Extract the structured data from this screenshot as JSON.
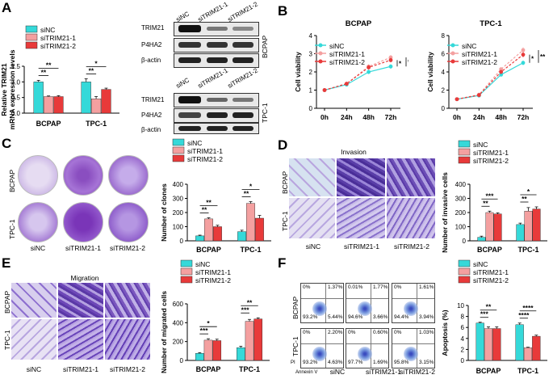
{
  "colors": {
    "siNC": "#35d9d9",
    "si1": "#f4a0a0",
    "si2": "#e83a3a",
    "err": "#111111",
    "purple": "#6a2a9a",
    "lavender": "#c9b6e6",
    "sig": "#000000"
  },
  "legend": [
    "siNC",
    "siTRIM21-1",
    "siTRIM21-2"
  ],
  "panel_labels": [
    "A",
    "B",
    "C",
    "D",
    "E",
    "F"
  ],
  "panelA": {
    "ylabel1": "Relative TRIM21",
    "ylabel2": "mRNA expression levels",
    "blot_lanes": [
      "siNC",
      "siTRIM21-1",
      "siTRIM21-2"
    ],
    "blot_rows": [
      "TRIM21",
      "P4HA2",
      "β-actin"
    ],
    "blot_groups": [
      "BCPAP",
      "TPC-1"
    ]
  },
  "panelB": {
    "titles": [
      "BCPAP",
      "TPC-1"
    ],
    "ylabel": "Cell viability"
  },
  "panelC": {
    "rows": [
      "BCPAP",
      "TPC-1"
    ],
    "cols": [
      "siNC",
      "siTRIM21-1",
      "siTRIM21-2"
    ]
  },
  "panelD": {
    "title": "Invasion",
    "rows": [
      "BCPAP",
      "TPC-1"
    ],
    "cols": [
      "siNC",
      "siTRIM21-1",
      "siTRIM21-2"
    ]
  },
  "panelE": {
    "title": "Migration",
    "rows": [
      "BCPAP",
      "TPC-1"
    ],
    "cols": [
      "siNC",
      "siTRIM21-1",
      "siTRIM21-2"
    ]
  },
  "panelF": {
    "rows": [
      "BCPAP",
      "TPC-1"
    ],
    "cols": [
      "siNC",
      "siTRIM21-1",
      "siTRIM21-2"
    ],
    "xaxis": "Annexin V",
    "yaxis": "PI",
    "quadrants": [
      [
        [
          "0%",
          "1.37%",
          "93.2%",
          "5.44%"
        ],
        [
          "0.01%",
          "1.77%",
          "94.6%",
          "3.66%"
        ],
        [
          "0%",
          "1.61%",
          "94.4%",
          "3.94%"
        ]
      ],
      [
        [
          "0%",
          "2.20%",
          "93.2%",
          "4.63%"
        ],
        [
          "0%",
          "0.60%",
          "97.7%",
          "1.69%"
        ],
        [
          "0%",
          "1.03%",
          "95.8%",
          "3.15%"
        ]
      ]
    ]
  },
  "chart_data": [
    {
      "id": "A",
      "type": "bar",
      "categories": [
        "BCPAP",
        "TPC-1"
      ],
      "ylabel": "Relative TRIM21 mRNA expression levels",
      "series": [
        {
          "name": "siNC",
          "values": [
            1.0,
            1.0
          ],
          "err": [
            0.05,
            0.1
          ]
        },
        {
          "name": "siTRIM21-1",
          "values": [
            0.53,
            0.46
          ],
          "err": [
            0.02,
            0.07
          ]
        },
        {
          "name": "siTRIM21-2",
          "values": [
            0.53,
            0.76
          ],
          "err": [
            0.03,
            0.04
          ]
        }
      ],
      "ylim": [
        0,
        1.5
      ],
      "yticks": [
        "0.0",
        "0.5",
        "1.0",
        "1.5"
      ],
      "sig": [
        {
          "cat": 0,
          "pairs": [
            [
              "**",
              0,
              1
            ],
            [
              "**",
              0,
              2
            ]
          ]
        },
        {
          "cat": 1,
          "pairs": [
            [
              "**",
              0,
              1
            ],
            [
              "*",
              0,
              2
            ]
          ]
        }
      ]
    },
    {
      "id": "B1",
      "type": "line",
      "title": "BCPAP",
      "categories": [
        "0h",
        "24h",
        "48h",
        "72h"
      ],
      "ylabel": "Cell viability",
      "ylim": [
        0,
        4
      ],
      "yticks": [
        "0",
        "1",
        "2",
        "3",
        "4"
      ],
      "series": [
        {
          "name": "siNC",
          "values": [
            1.0,
            1.3,
            2.0,
            2.3
          ],
          "err": [
            0.1,
            0.1,
            0.12,
            0.12
          ]
        },
        {
          "name": "siTRIM21-1",
          "values": [
            1.0,
            1.35,
            2.3,
            2.8
          ],
          "err": [
            0.1,
            0.1,
            0.12,
            0.12
          ]
        },
        {
          "name": "siTRIM21-2",
          "values": [
            1.0,
            1.35,
            2.25,
            2.65
          ],
          "err": [
            0.1,
            0.1,
            0.12,
            0.12
          ]
        }
      ],
      "sig": [
        "*",
        "*"
      ]
    },
    {
      "id": "B2",
      "type": "line",
      "title": "TPC-1",
      "categories": [
        "0h",
        "24h",
        "48h",
        "72h"
      ],
      "ylabel": "Cell viability",
      "ylim": [
        0,
        8
      ],
      "yticks": [
        "0",
        "2",
        "4",
        "6",
        "8"
      ],
      "series": [
        {
          "name": "siNC",
          "values": [
            1.0,
            1.4,
            3.7,
            5.0
          ],
          "err": [
            0.1,
            0.15,
            0.2,
            0.25
          ]
        },
        {
          "name": "siTRIM21-1",
          "values": [
            1.0,
            1.5,
            4.3,
            6.4
          ],
          "err": [
            0.1,
            0.15,
            0.2,
            0.3
          ]
        },
        {
          "name": "siTRIM21-2",
          "values": [
            1.0,
            1.45,
            4.0,
            5.9
          ],
          "err": [
            0.1,
            0.15,
            0.2,
            0.3
          ]
        }
      ],
      "sig": [
        "*",
        "**"
      ]
    },
    {
      "id": "C",
      "type": "bar",
      "categories": [
        "BCPAP",
        "TPC-1"
      ],
      "ylabel": "Number of clones",
      "ylim": [
        0,
        400
      ],
      "yticks": [
        "0",
        "100",
        "200",
        "300",
        "400"
      ],
      "series": [
        {
          "name": "siNC",
          "values": [
            35,
            65
          ],
          "err": [
            5,
            10
          ]
        },
        {
          "name": "siTRIM21-1",
          "values": [
            155,
            265
          ],
          "err": [
            8,
            12
          ]
        },
        {
          "name": "siTRIM21-2",
          "values": [
            100,
            160
          ],
          "err": [
            10,
            20
          ]
        }
      ],
      "sig": [
        {
          "cat": 0,
          "pairs": [
            [
              "**",
              0,
              1
            ],
            [
              "**",
              0,
              2
            ]
          ]
        },
        {
          "cat": 1,
          "pairs": [
            [
              "**",
              0,
              1
            ],
            [
              "*",
              0,
              2
            ]
          ]
        }
      ]
    },
    {
      "id": "D",
      "type": "bar",
      "categories": [
        "BCPAP",
        "TPC-1"
      ],
      "ylabel": "Number of invasive cells",
      "ylim": [
        0,
        400
      ],
      "yticks": [
        "0",
        "100",
        "200",
        "300",
        "400"
      ],
      "series": [
        {
          "name": "siNC",
          "values": [
            25,
            115
          ],
          "err": [
            8,
            10
          ]
        },
        {
          "name": "siTRIM21-1",
          "values": [
            200,
            210
          ],
          "err": [
            10,
            25
          ]
        },
        {
          "name": "siTRIM21-2",
          "values": [
            190,
            225
          ],
          "err": [
            8,
            15
          ]
        }
      ],
      "sig": [
        {
          "cat": 0,
          "pairs": [
            [
              "**",
              0,
              1
            ],
            [
              "***",
              0,
              2
            ]
          ]
        },
        {
          "cat": 1,
          "pairs": [
            [
              "**",
              0,
              1
            ],
            [
              "*",
              0,
              2
            ]
          ]
        }
      ]
    },
    {
      "id": "E",
      "type": "bar",
      "categories": [
        "BCPAP",
        "TPC-1"
      ],
      "ylabel": "Number of migrated cells",
      "ylim": [
        0,
        600
      ],
      "yticks": [
        "0",
        "200",
        "400",
        "600"
      ],
      "series": [
        {
          "name": "siNC",
          "values": [
            75,
            135
          ],
          "err": [
            8,
            15
          ]
        },
        {
          "name": "siTRIM21-1",
          "values": [
            215,
            415
          ],
          "err": [
            15,
            20
          ]
        },
        {
          "name": "siTRIM21-2",
          "values": [
            210,
            440
          ],
          "err": [
            15,
            12
          ]
        }
      ],
      "sig": [
        {
          "cat": 0,
          "pairs": [
            [
              "***",
              0,
              1
            ],
            [
              "*",
              0,
              2
            ]
          ]
        },
        {
          "cat": 1,
          "pairs": [
            [
              "***",
              0,
              1
            ],
            [
              "**",
              0,
              2
            ]
          ]
        }
      ]
    },
    {
      "id": "F",
      "type": "bar",
      "categories": [
        "BCPAP",
        "TPC-1"
      ],
      "ylabel": "Apoptosis (%)",
      "ylim": [
        0,
        10
      ],
      "yticks": [
        "0",
        "2",
        "4",
        "6",
        "8",
        "10"
      ],
      "series": [
        {
          "name": "siNC",
          "values": [
            6.8,
            6.5
          ],
          "err": [
            0.15,
            0.3
          ]
        },
        {
          "name": "siTRIM21-1",
          "values": [
            5.8,
            2.3
          ],
          "err": [
            0.3,
            0.1
          ]
        },
        {
          "name": "siTRIM21-2",
          "values": [
            5.8,
            4.4
          ],
          "err": [
            0.3,
            0.2
          ]
        }
      ],
      "sig": [
        {
          "cat": 0,
          "pairs": [
            [
              "***",
              0,
              1
            ],
            [
              "**",
              0,
              2
            ]
          ]
        },
        {
          "cat": 1,
          "pairs": [
            [
              "****",
              0,
              1
            ],
            [
              "****",
              0,
              2
            ]
          ]
        }
      ]
    }
  ]
}
